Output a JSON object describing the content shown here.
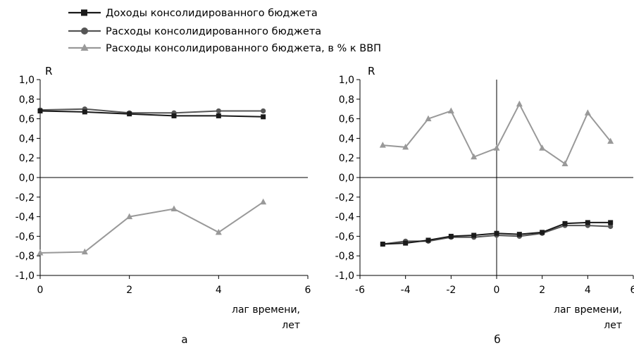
{
  "legend": [
    {
      "label": "Доходы консолидированного бюджета",
      "marker": "square",
      "color": "#1a1a1a"
    },
    {
      "label": "Расходы консолидированного бюджета",
      "marker": "circle",
      "color": "#555555"
    },
    {
      "label": "Расходы консолидированного бюджета, в % к ВВП",
      "marker": "triangle",
      "color": "#999999"
    }
  ],
  "chart_data": [
    {
      "type": "line",
      "panel_label": "а",
      "y_axis_label": "R",
      "x_label_line1": "лаг времени,",
      "x_label_line2": "лет",
      "xlim": [
        0,
        6
      ],
      "ylim": [
        -1.0,
        1.0
      ],
      "x_ticks": [
        0,
        2,
        4,
        6
      ],
      "y_ticks": [
        1.0,
        0.8,
        0.6,
        0.4,
        0.2,
        0.0,
        -0.2,
        -0.4,
        -0.6,
        -0.8,
        -1.0
      ],
      "x_tick_labels": [
        "0",
        "2",
        "4",
        "6"
      ],
      "y_tick_labels": [
        "1,0",
        "0,8",
        "0,6",
        "0,4",
        "0,2",
        "0,0",
        "-0,2",
        "-0,4",
        "-0,6",
        "-0,8",
        "-1,0"
      ],
      "x": [
        0,
        1,
        2,
        3,
        4,
        5
      ],
      "series": [
        {
          "name": "Доходы консолидированного бюджета",
          "values": [
            0.68,
            0.67,
            0.65,
            0.63,
            0.63,
            0.62
          ]
        },
        {
          "name": "Расходы консолидированного бюджета",
          "values": [
            0.69,
            0.7,
            0.66,
            0.66,
            0.68,
            0.68
          ]
        },
        {
          "name": "Расходы консолидированного бюджета, в % к ВВП",
          "values": [
            -0.77,
            -0.76,
            -0.4,
            -0.32,
            -0.56,
            -0.25
          ]
        }
      ]
    },
    {
      "type": "line",
      "panel_label": "б",
      "y_axis_label": "R",
      "x_label_line1": "лаг времени,",
      "x_label_line2": "лет",
      "xlim": [
        -6,
        6
      ],
      "ylim": [
        -1.0,
        1.0
      ],
      "x_ticks": [
        -6,
        -4,
        -2,
        0,
        2,
        4,
        6
      ],
      "y_ticks": [
        1.0,
        0.8,
        0.6,
        0.4,
        0.2,
        0.0,
        -0.2,
        -0.4,
        -0.6,
        -0.8,
        -1.0
      ],
      "x_tick_labels": [
        "-6",
        "-4",
        "-2",
        "0",
        "2",
        "4",
        "6"
      ],
      "y_tick_labels": [
        "1,0",
        "0,8",
        "0,6",
        "0,4",
        "0,2",
        "0,0",
        "-0,2",
        "-0,4",
        "-0,6",
        "-0,8",
        "-1,0"
      ],
      "x": [
        -5,
        -4,
        -3,
        -2,
        -1,
        0,
        1,
        2,
        3,
        4,
        5
      ],
      "series": [
        {
          "name": "Доходы консолидированного бюджета",
          "values": [
            -0.68,
            -0.67,
            -0.64,
            -0.6,
            -0.59,
            -0.57,
            -0.58,
            -0.56,
            -0.47,
            -0.46,
            -0.46
          ]
        },
        {
          "name": "Расходы консолидированного бюджета",
          "values": [
            -0.68,
            -0.65,
            -0.65,
            -0.61,
            -0.61,
            -0.59,
            -0.6,
            -0.57,
            -0.49,
            -0.49,
            -0.5
          ]
        },
        {
          "name": "Расходы консолидированного бюджета, в % к ВВП",
          "values": [
            0.33,
            0.31,
            0.6,
            0.68,
            0.21,
            0.3,
            0.75,
            0.3,
            0.14,
            0.66,
            0.37
          ]
        }
      ]
    }
  ]
}
